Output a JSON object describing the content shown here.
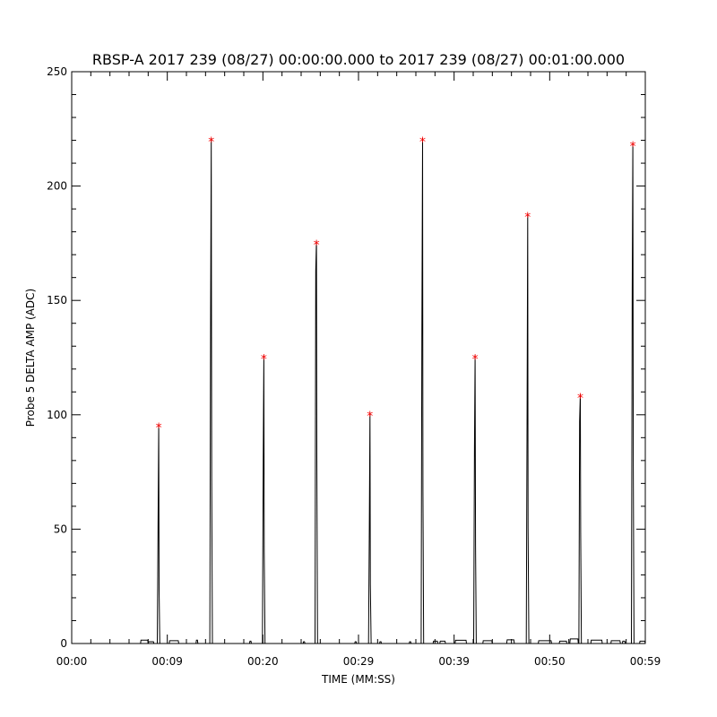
{
  "chart_data": {
    "type": "line",
    "title": "RBSP-A 2017 239 (08/27) 00:00:00.000 to 2017 239 (08/27) 00:01:00.000",
    "xlabel": "TIME (MM:SS)",
    "ylabel": "Probe 5 DELTA AMP (ADC)",
    "xlim": [
      0,
      60
    ],
    "ylim": [
      0,
      250
    ],
    "grid": false,
    "x_ticks": [
      {
        "value": 0,
        "label": "00:00"
      },
      {
        "value": 10,
        "label": "00:09"
      },
      {
        "value": 20,
        "label": "00:20"
      },
      {
        "value": 30,
        "label": "00:29"
      },
      {
        "value": 40,
        "label": "00:39"
      },
      {
        "value": 50,
        "label": "00:50"
      },
      {
        "value": 60,
        "label": "00:59"
      }
    ],
    "y_ticks": [
      0,
      50,
      100,
      150,
      200,
      250
    ],
    "series_color": "#000000",
    "marker_color": "#ff0000",
    "marker_symbol": "*",
    "spikes": [
      {
        "x": 9.1,
        "peak": 96,
        "secondary": 48
      },
      {
        "x": 14.6,
        "peak": 221,
        "secondary": 145
      },
      {
        "x": 20.1,
        "peak": 126,
        "secondary": 80
      },
      {
        "x": 25.6,
        "peak": 176,
        "secondary": 163
      },
      {
        "x": 31.2,
        "peak": 101,
        "secondary": 52
      },
      {
        "x": 36.7,
        "peak": 221,
        "secondary": 134
      },
      {
        "x": 42.2,
        "peak": 126,
        "secondary": 86
      },
      {
        "x": 47.7,
        "peak": 188,
        "secondary": 101
      },
      {
        "x": 53.2,
        "peak": 109,
        "secondary": 97
      },
      {
        "x": 58.7,
        "peak": 219,
        "secondary": 155
      }
    ],
    "baseline_bumps": [
      {
        "x": 7.2,
        "w": 0.8,
        "y": 1.5
      },
      {
        "x": 8.0,
        "w": 0.6,
        "y": 0.8
      },
      {
        "x": 10.2,
        "w": 1.0,
        "y": 1.2
      },
      {
        "x": 13.0,
        "w": 0.2,
        "y": 1.5
      },
      {
        "x": 18.6,
        "w": 0.2,
        "y": 1.0
      },
      {
        "x": 24.2,
        "w": 0.2,
        "y": 0.8
      },
      {
        "x": 29.6,
        "w": 0.2,
        "y": 0.8
      },
      {
        "x": 32.2,
        "w": 0.2,
        "y": 0.8
      },
      {
        "x": 35.3,
        "w": 0.2,
        "y": 0.8
      },
      {
        "x": 37.8,
        "w": 0.5,
        "y": 1.0
      },
      {
        "x": 38.5,
        "w": 0.6,
        "y": 1.0
      },
      {
        "x": 40.1,
        "w": 1.2,
        "y": 1.4
      },
      {
        "x": 43.0,
        "w": 1.0,
        "y": 1.2
      },
      {
        "x": 45.5,
        "w": 0.8,
        "y": 1.6
      },
      {
        "x": 48.8,
        "w": 1.4,
        "y": 1.2
      },
      {
        "x": 51.0,
        "w": 0.8,
        "y": 1.0
      },
      {
        "x": 52.1,
        "w": 0.9,
        "y": 2.0
      },
      {
        "x": 54.3,
        "w": 1.2,
        "y": 1.5
      },
      {
        "x": 56.4,
        "w": 1.0,
        "y": 1.2
      },
      {
        "x": 57.6,
        "w": 0.3,
        "y": 1.0
      },
      {
        "x": 59.4,
        "w": 0.6,
        "y": 1.0
      }
    ]
  }
}
